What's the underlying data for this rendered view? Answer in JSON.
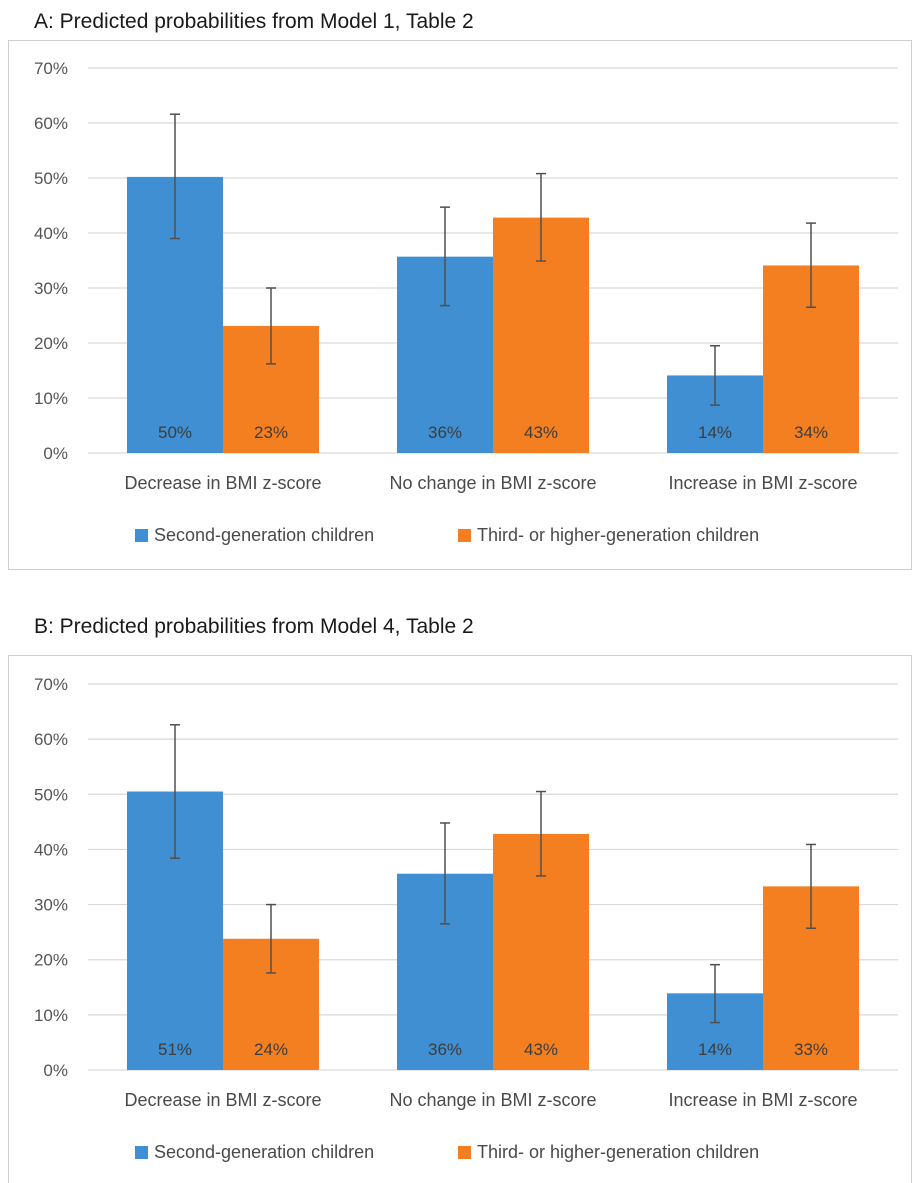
{
  "colors": {
    "series_1": "#3f8fd2",
    "series_2": "#f47f20",
    "gridline": "#d9d9d9",
    "error_bar": "#505050"
  },
  "chart_data": [
    {
      "type": "bar",
      "title": "A: Predicted probabilities from Model 1, Table 2",
      "categories": [
        "Decrease in BMI z-score",
        "No change in BMI z-score",
        "Increase in BMI z-score"
      ],
      "series": [
        {
          "name": "Second-generation children",
          "values": [
            50.2,
            35.7,
            14.1
          ],
          "data_labels": [
            "50%",
            "36%",
            "14%"
          ],
          "error_low": [
            39.0,
            26.8,
            8.7
          ],
          "error_high": [
            61.6,
            44.7,
            19.5
          ]
        },
        {
          "name": "Third- or higher-generation children",
          "values": [
            23.1,
            42.8,
            34.1
          ],
          "data_labels": [
            "23%",
            "43%",
            "34%"
          ],
          "error_low": [
            16.2,
            34.9,
            26.5
          ],
          "error_high": [
            30.0,
            50.8,
            41.8
          ]
        }
      ],
      "yticks": [
        "0%",
        "10%",
        "20%",
        "30%",
        "40%",
        "50%",
        "60%",
        "70%"
      ],
      "ylim": [
        0,
        70
      ],
      "grid": true,
      "legend_position": "bottom"
    },
    {
      "type": "bar",
      "title": "B: Predicted probabilities from Model 4, Table 2",
      "categories": [
        "Decrease in BMI z-score",
        "No change in BMI z-score",
        "Increase in BMI z-score"
      ],
      "series": [
        {
          "name": "Second-generation children",
          "values": [
            50.5,
            35.6,
            13.9
          ],
          "data_labels": [
            "51%",
            "36%",
            "14%"
          ],
          "error_low": [
            38.4,
            26.5,
            8.6
          ],
          "error_high": [
            62.6,
            44.8,
            19.1
          ]
        },
        {
          "name": "Third- or higher-generation children",
          "values": [
            23.8,
            42.8,
            33.3
          ],
          "data_labels": [
            "24%",
            "43%",
            "33%"
          ],
          "error_low": [
            17.6,
            35.2,
            25.7
          ],
          "error_high": [
            30.0,
            50.5,
            40.9
          ]
        }
      ],
      "yticks": [
        "0%",
        "10%",
        "20%",
        "30%",
        "40%",
        "50%",
        "60%",
        "70%"
      ],
      "ylim": [
        0,
        70
      ],
      "grid": true,
      "legend_position": "bottom"
    }
  ]
}
